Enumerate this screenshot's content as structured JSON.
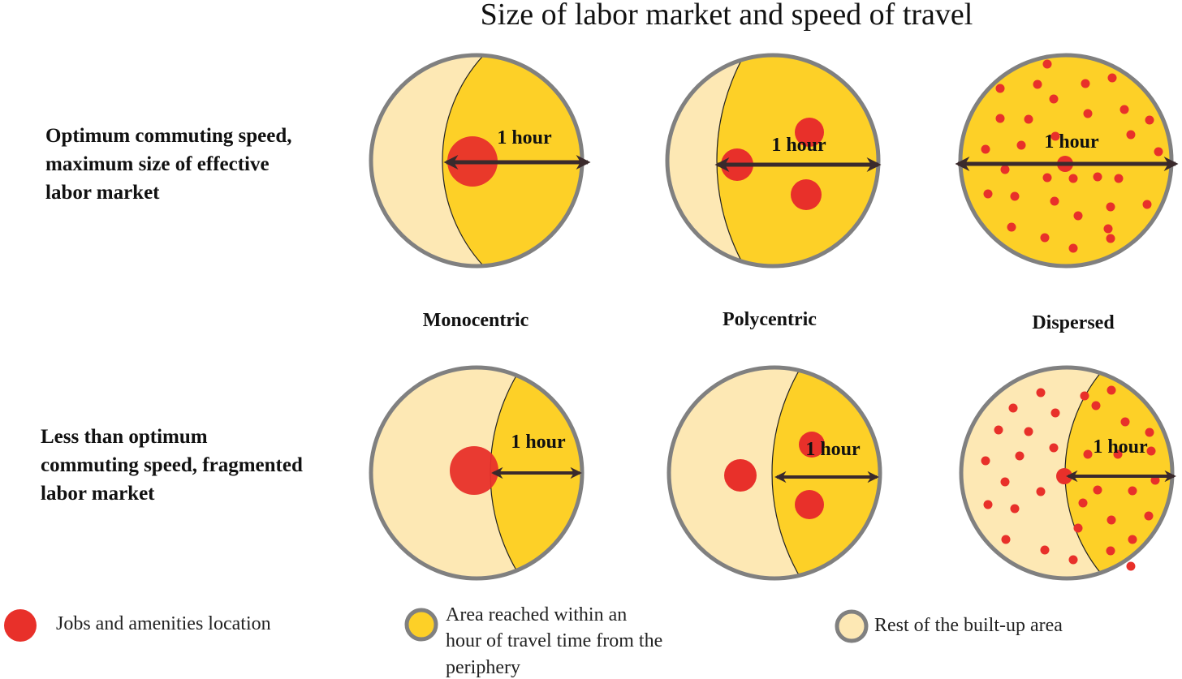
{
  "title": "Size of labor market and speed of travel",
  "rows": [
    {
      "label_lines": [
        "Optimum commuting speed,",
        "maximum size of effective",
        "labor market"
      ]
    },
    {
      "label_lines": [
        "Less than optimum",
        "commuting speed, fragmented",
        "labor market"
      ]
    }
  ],
  "columns": [
    "Monocentric",
    "Polycentric",
    "Dispersed"
  ],
  "travel_time_label": "1 hour",
  "legend": {
    "jobs": "Jobs and amenities location",
    "reached_lines": [
      "Area reached within an",
      "hour of travel time from the",
      "periphery"
    ],
    "rest": "Rest of the built-up area"
  },
  "colors": {
    "jobs": "#e8302a",
    "reached_area": "#fdd027",
    "rest_area": "#fde8b4",
    "outline": "#808080",
    "arrow": "#3a2a2c"
  }
}
